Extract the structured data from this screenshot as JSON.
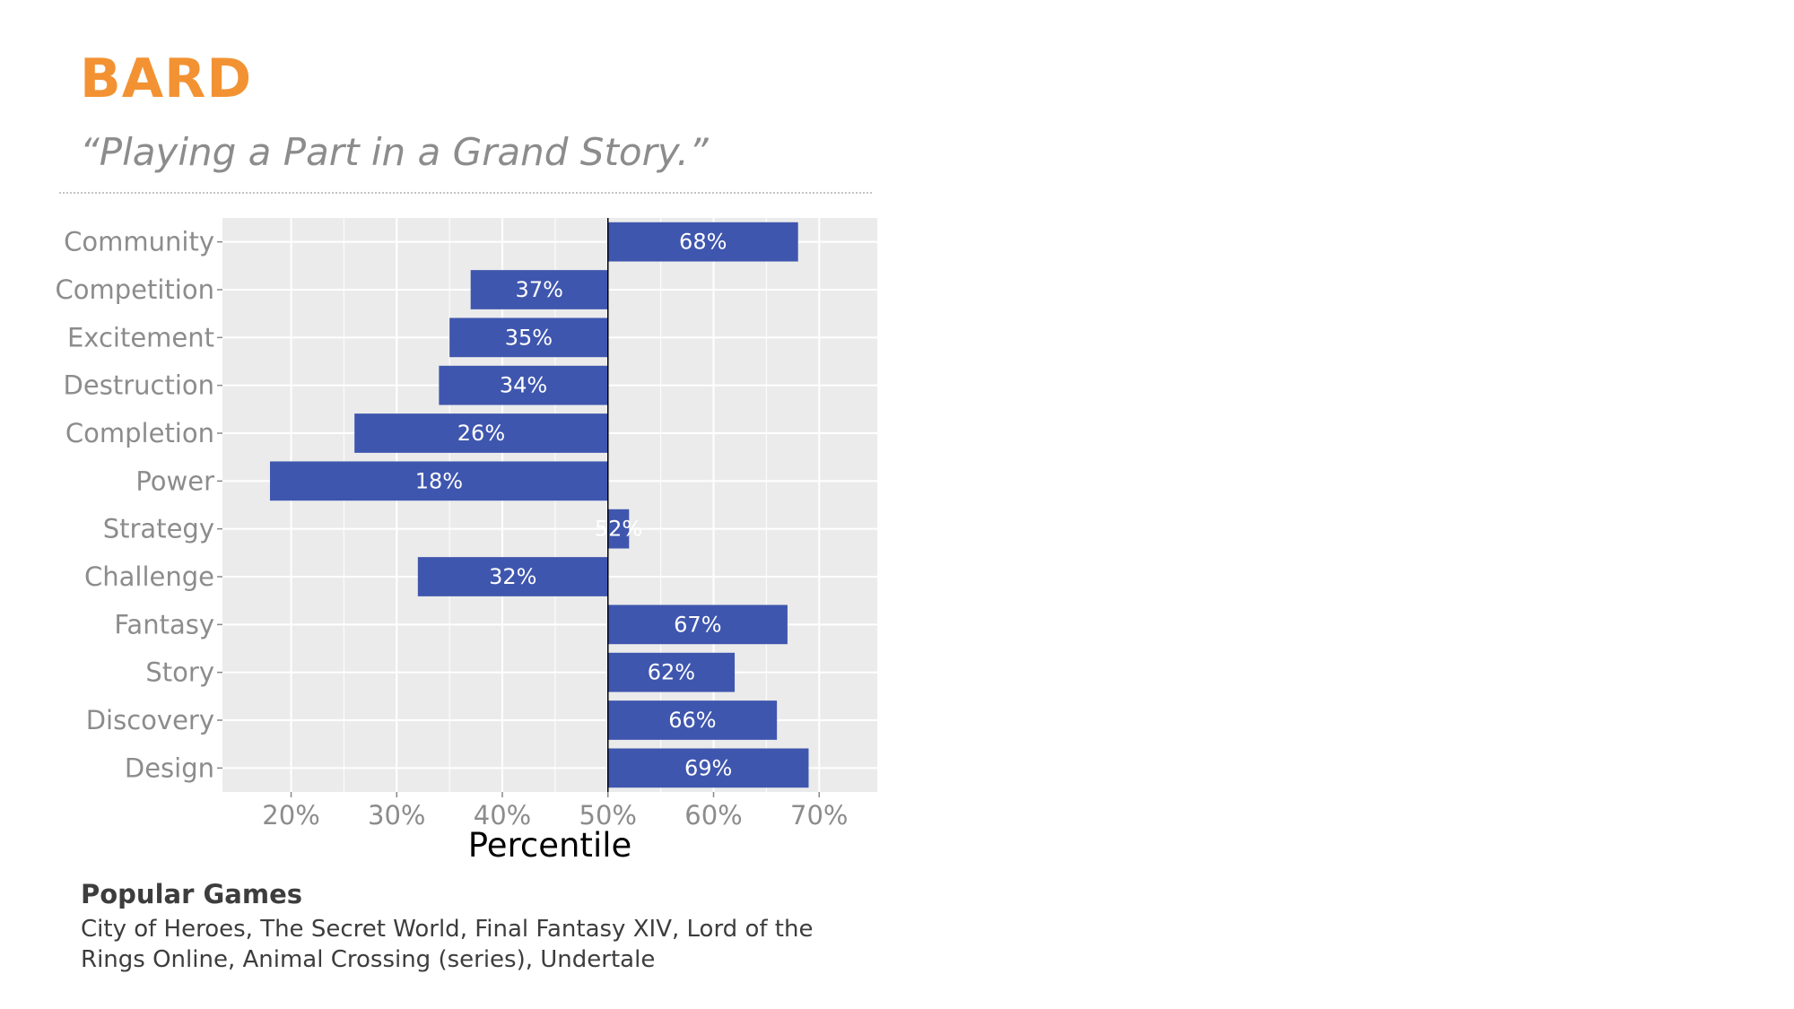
{
  "header": {
    "title": "BARD",
    "subtitle": "“Playing a Part in a Grand Story.”"
  },
  "colors": {
    "title": "#F39233",
    "bar": "#3F56AE",
    "panel": "#EBEBEB",
    "grid": "#FFFFFF"
  },
  "chart_data": {
    "type": "bar",
    "orientation": "horizontal",
    "baseline": 50,
    "categories": [
      "Community",
      "Competition",
      "Excitement",
      "Destruction",
      "Completion",
      "Power",
      "Strategy",
      "Challenge",
      "Fantasy",
      "Story",
      "Discovery",
      "Design"
    ],
    "values": [
      68,
      37,
      35,
      34,
      26,
      18,
      52,
      32,
      67,
      62,
      66,
      69
    ],
    "labels": [
      "68%",
      "37%",
      "35%",
      "34%",
      "26%",
      "18%",
      "52%",
      "32%",
      "67%",
      "62%",
      "66%",
      "69%"
    ],
    "xlabel": "Percentile",
    "xticks": [
      20,
      30,
      40,
      50,
      60,
      70
    ],
    "xtick_labels": [
      "20%",
      "30%",
      "40%",
      "50%",
      "60%",
      "70%"
    ],
    "xlim": [
      13.5,
      75.5
    ],
    "grid": true
  },
  "popular": {
    "title": "Popular Games",
    "text": "City of Heroes, The Secret World, Final Fantasy XIV, Lord of the Rings Online, Animal Crossing (series), Undertale"
  }
}
